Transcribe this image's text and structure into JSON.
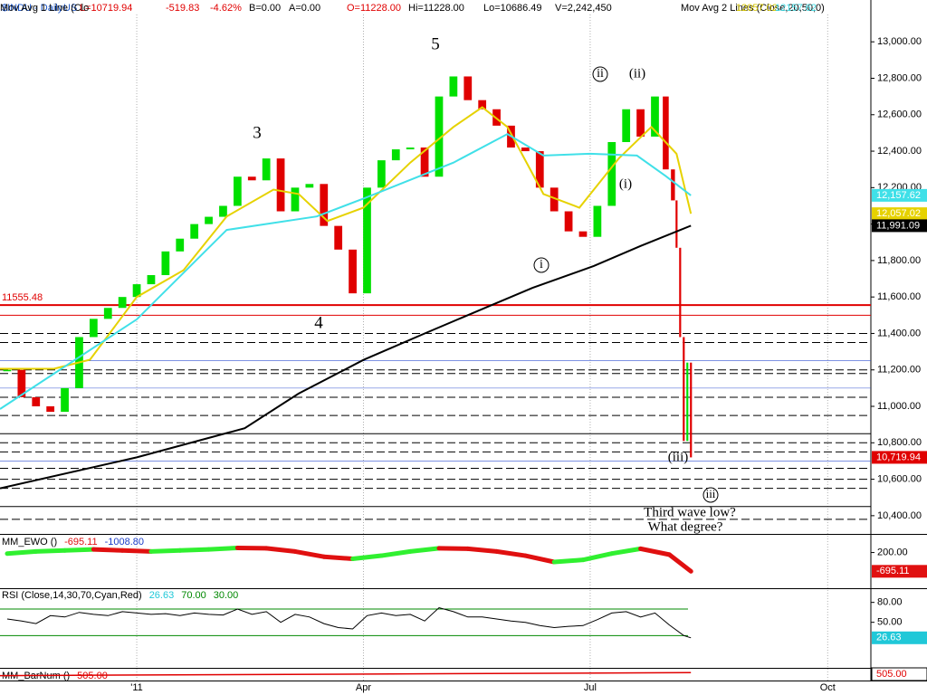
{
  "chart_data": [
    {
      "type": "candlestick",
      "header": [
        {
          "text": "$INDU - Daily",
          "color": "#1a55c8"
        },
        {
          "text": "US",
          "color": "#1a55c8"
        },
        {
          "text": "L=10719.94",
          "color": "#e00000"
        },
        {
          "text": "-519.83",
          "color": "#e00000"
        },
        {
          "text": "-4.62%",
          "color": "#e00000"
        },
        {
          "text": "B=0.00",
          "color": "#000000"
        },
        {
          "text": "A=0.00",
          "color": "#000000"
        },
        {
          "text": "O=11228.00",
          "color": "#e00000"
        },
        {
          "text": "Hi=11228.00",
          "color": "#000000"
        },
        {
          "text": "Lo=10686.49",
          "color": "#000000"
        },
        {
          "text": "V=2,242,450",
          "color": "#000000"
        },
        {
          "text": "Mov Avg 2 Lines (Close,20,50,0)",
          "color": "#000000"
        },
        {
          "text": "12057.02",
          "color": "#d8c800"
        },
        {
          "text": "12157.62",
          "color": "#40d8e0"
        },
        {
          "text": "Mov Avg 1 Line (Clo",
          "color": "#000000"
        }
      ],
      "xlim": [
        -38,
        204
      ],
      "xticks": [
        {
          "value": 0,
          "label": "'11"
        },
        {
          "value": 63,
          "label": "Apr"
        },
        {
          "value": 126,
          "label": "Jul"
        },
        {
          "value": 192,
          "label": "Oct"
        }
      ],
      "ylim": [
        10300,
        13150
      ],
      "yticks": [
        {
          "value": 10400,
          "label": "10,400.00"
        },
        {
          "value": 10600,
          "label": "10,600.00"
        },
        {
          "value": 10800,
          "label": "10,800.00"
        },
        {
          "value": 11000,
          "label": "11,000.00"
        },
        {
          "value": 11200,
          "label": "11,200.00"
        },
        {
          "value": 11400,
          "label": "11,400.00"
        },
        {
          "value": 11600,
          "label": "11,600.00"
        },
        {
          "value": 11800,
          "label": "11,800.00"
        },
        {
          "value": 12000,
          "label": "12,000.00"
        },
        {
          "value": 12200,
          "label": "12,200.00"
        },
        {
          "value": 12400,
          "label": "12,400.00"
        },
        {
          "value": 12600,
          "label": "12,600.00"
        },
        {
          "value": 12800,
          "label": "12,800.00"
        },
        {
          "value": 13000,
          "label": "13,000.00"
        }
      ],
      "up_color": "#00e000",
      "down_color": "#e00000",
      "series": [
        {
          "color": "#e00000",
          "last_label": "10,719.94",
          "x": [
            -36,
            -32,
            -28,
            -24,
            -20,
            -16,
            -12,
            -8,
            -4,
            0,
            4,
            8,
            12,
            16,
            20,
            24,
            28,
            32,
            36,
            40,
            44,
            48,
            52,
            56,
            60,
            64,
            68,
            72,
            76,
            80,
            84,
            88,
            92,
            96,
            100,
            104,
            108,
            112,
            116,
            120,
            124,
            128,
            132,
            136,
            140,
            144,
            147,
            149,
            150,
            151,
            152,
            153,
            154
          ],
          "values": [
            11200,
            11050,
            11000,
            10970,
            11100,
            11380,
            11480,
            11540,
            11600,
            11670,
            11720,
            11850,
            11920,
            12000,
            12040,
            12100,
            12260,
            12240,
            12360,
            12070,
            12200,
            12220,
            11990,
            11860,
            11620,
            12200,
            12350,
            12410,
            12420,
            12260,
            12700,
            12810,
            12680,
            12630,
            12540,
            12420,
            12400,
            12200,
            12070,
            11960,
            11930,
            12100,
            12450,
            12630,
            12480,
            12700,
            12300,
            12130,
            11870,
            11380,
            10810,
            11240,
            10719.94
          ]
        },
        {
          "style": "line",
          "color": "#e6d200",
          "last_label": "12,057.02",
          "x": [
            -38,
            -23,
            -13,
            0,
            13,
            25,
            38,
            45,
            53,
            63,
            76,
            88,
            96,
            103,
            113,
            123,
            134,
            143,
            150,
            154
          ],
          "values": [
            11206,
            11206,
            11256,
            11600,
            11747,
            12042,
            12189,
            12165,
            12017,
            12090,
            12337,
            12533,
            12641,
            12533,
            12165,
            12090,
            12361,
            12533,
            12386,
            12057.02
          ]
        },
        {
          "style": "line",
          "color": "#40e0e8",
          "last_label": "12,157.62",
          "x": [
            -38,
            0,
            25,
            50,
            63,
            88,
            103,
            113,
            126,
            139,
            147,
            154
          ],
          "values": [
            10985,
            11477,
            11968,
            12042,
            12140,
            12337,
            12494,
            12376,
            12386,
            12376,
            12263,
            12157.62
          ]
        },
        {
          "style": "line",
          "color": "#000000",
          "last_label": "11,991.09",
          "x": [
            -38,
            0,
            30,
            45,
            63,
            80,
            98,
            110,
            127,
            140,
            154
          ],
          "values": [
            10550,
            10720,
            10880,
            11070,
            11255,
            11400,
            11550,
            11650,
            11770,
            11880,
            11991.09
          ]
        }
      ],
      "marker_line": {
        "value": 11555.48,
        "color": "#e00000"
      },
      "levels": [
        {
          "value": 11500,
          "color": "#e00000",
          "style": "solid"
        },
        {
          "value": 11400,
          "color": "#000000",
          "style": "dashed"
        },
        {
          "value": 11350,
          "color": "#000000",
          "style": "dashed"
        },
        {
          "value": 11250,
          "color": "#3050d0",
          "style": "thin"
        },
        {
          "value": 11200,
          "color": "#000000",
          "style": "dashed"
        },
        {
          "value": 11180,
          "color": "#000000",
          "style": "dashed"
        },
        {
          "value": 11100,
          "color": "#3050d0",
          "style": "thin"
        },
        {
          "value": 11050,
          "color": "#000000",
          "style": "dashed"
        },
        {
          "value": 10950,
          "color": "#000000",
          "style": "dashed"
        },
        {
          "value": 10850,
          "color": "#000000",
          "style": "solid"
        },
        {
          "value": 10800,
          "color": "#000000",
          "style": "dashed"
        },
        {
          "value": 10750,
          "color": "#000000",
          "style": "dashed"
        },
        {
          "value": 10700,
          "color": "#3050d0",
          "style": "thin"
        },
        {
          "value": 10660,
          "color": "#000000",
          "style": "dashed"
        },
        {
          "value": 10600,
          "color": "#000000",
          "style": "dashed"
        },
        {
          "value": 10550,
          "color": "#000000",
          "style": "dashed"
        },
        {
          "value": 10450,
          "color": "#000000",
          "style": "solid"
        },
        {
          "value": 10380,
          "color": "#000000",
          "style": "dashed"
        }
      ],
      "annotations": [
        "3",
        "4",
        "5",
        "ii",
        "(ii)",
        "(i)",
        "i",
        "(iii)",
        "iii",
        "Third  wave  low?",
        "What degree?"
      ]
    },
    {
      "type": "line",
      "title": "MM_EWO ()",
      "signal_label": "-1008.80",
      "signal_color": "#1a3cc8",
      "ylim": [
        -1500,
        1000
      ],
      "yticks": [
        {
          "value": 200,
          "label": "200.00"
        }
      ],
      "up_color": "#30f030",
      "down_color": "#e01010",
      "series": [
        {
          "color": "#e01010",
          "x": [
            -36,
            -28,
            -20,
            -12,
            -4,
            4,
            12,
            20,
            28,
            36,
            44,
            52,
            60,
            68,
            76,
            84,
            92,
            100,
            108,
            116,
            124,
            132,
            140,
            148,
            154
          ],
          "values": [
            150,
            250,
            300,
            350,
            300,
            250,
            300,
            350,
            420,
            400,
            250,
            0,
            -100,
            50,
            250,
            400,
            380,
            250,
            50,
            -250,
            -150,
            150,
            380,
            100,
            -695.11
          ]
        }
      ]
    },
    {
      "type": "line",
      "title": "RSI (Close,14,30,70,Cyan,Red)",
      "ylim": [
        -20,
        100
      ],
      "yticks": [
        {
          "value": 80,
          "label": "80.00"
        },
        {
          "value": 50,
          "label": "50.00"
        }
      ],
      "levels": [
        {
          "value": 70,
          "label": "70.00"
        },
        {
          "value": 30,
          "label": "30.00"
        }
      ],
      "level_color": "#008800",
      "series": [
        {
          "color": "#000000",
          "last_color": "#20c8d8",
          "x": [
            -36,
            -32,
            -28,
            -24,
            -20,
            -16,
            -12,
            -8,
            -4,
            0,
            4,
            8,
            12,
            16,
            20,
            24,
            28,
            32,
            36,
            40,
            44,
            48,
            52,
            56,
            60,
            64,
            68,
            72,
            76,
            80,
            84,
            88,
            92,
            96,
            100,
            104,
            108,
            112,
            116,
            120,
            124,
            128,
            132,
            136,
            140,
            144,
            148,
            152,
            154
          ],
          "values": [
            55,
            52,
            48,
            60,
            58,
            65,
            62,
            60,
            66,
            64,
            62,
            63,
            60,
            64,
            62,
            61,
            70,
            62,
            66,
            50,
            62,
            58,
            48,
            42,
            40,
            60,
            64,
            60,
            62,
            52,
            72,
            66,
            58,
            58,
            55,
            52,
            50,
            45,
            42,
            44,
            45,
            54,
            64,
            66,
            58,
            64,
            46,
            30,
            26.63
          ]
        }
      ]
    },
    {
      "type": "line",
      "title": "MM_BarNum ()",
      "ylim": [
        0,
        700
      ],
      "series": [
        {
          "color": "#e00000",
          "x": [
            -38,
            154
          ],
          "values": [
            313,
            505
          ],
          "value_labels": [
            null,
            "505.00"
          ]
        }
      ]
    }
  ]
}
